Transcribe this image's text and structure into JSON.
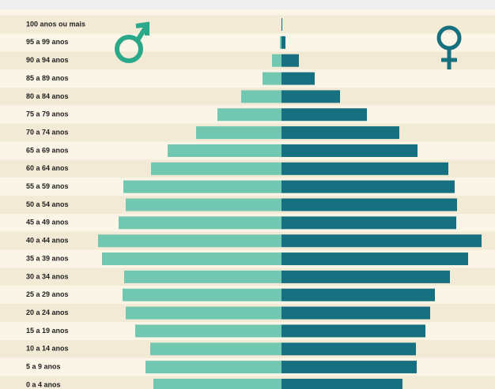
{
  "chart_data": {
    "type": "pyramid",
    "categories": [
      "100 anos ou mais",
      "95 a 99 anos",
      "90 a 94 anos",
      "85 a 89 anos",
      "80 a 84 anos",
      "75 a 79 anos",
      "70 a 74 anos",
      "65 a 69 anos",
      "60 a 64 anos",
      "55 a 59 anos",
      "50 a 54 anos",
      "45 a 49 anos",
      "40 a 44 anos",
      "35 a 39 anos",
      "30 a 34 anos",
      "25 a 29 anos",
      "20 a 24 anos",
      "15 a 19 anos",
      "10 a 14 anos",
      "5 a 9 anos",
      "0 a 4 anos"
    ],
    "series": [
      {
        "color": "#72c7b0",
        "values": [
          0,
          2,
          12,
          24,
          51,
          81,
          108,
          144,
          165,
          200,
          197,
          206,
          232,
          227,
          199,
          201,
          197,
          185,
          166,
          172,
          162
        ]
      },
      {
        "color": "#16707f",
        "values": [
          1,
          5,
          22,
          42,
          74,
          108,
          149,
          172,
          211,
          219,
          222,
          221,
          253,
          236,
          213,
          194,
          188,
          182,
          170,
          171,
          153
        ]
      }
    ],
    "xlim": [
      -356,
      270
    ]
  }
}
